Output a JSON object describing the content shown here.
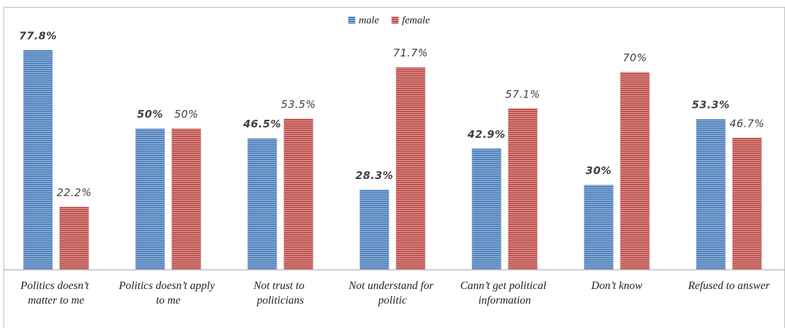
{
  "chart_data": {
    "type": "bar",
    "categories": [
      "Politics doesn’t matter to me",
      "Politics doesn’t apply to me",
      "Not trust to politicians",
      "Not understand for politic",
      "Cann’t get political information",
      "Don’t know",
      "Refused to answer"
    ],
    "series": [
      {
        "name": "male",
        "color": "#4f81bd",
        "values": [
          77.8,
          50,
          46.5,
          28.3,
          42.9,
          30,
          53.3
        ],
        "value_labels": [
          "77.8%",
          "50%",
          "46.5%",
          "28.3%",
          "42.9%",
          "30%",
          "53.3%"
        ]
      },
      {
        "name": "female",
        "color": "#c0504d",
        "values": [
          22.2,
          50,
          53.5,
          71.7,
          57.1,
          70,
          46.7
        ],
        "value_labels": [
          "22.2%",
          "50%",
          "53.5%",
          "71.7%",
          "57.1%",
          "70%",
          "46.7%"
        ]
      }
    ],
    "legend": "top"
  }
}
